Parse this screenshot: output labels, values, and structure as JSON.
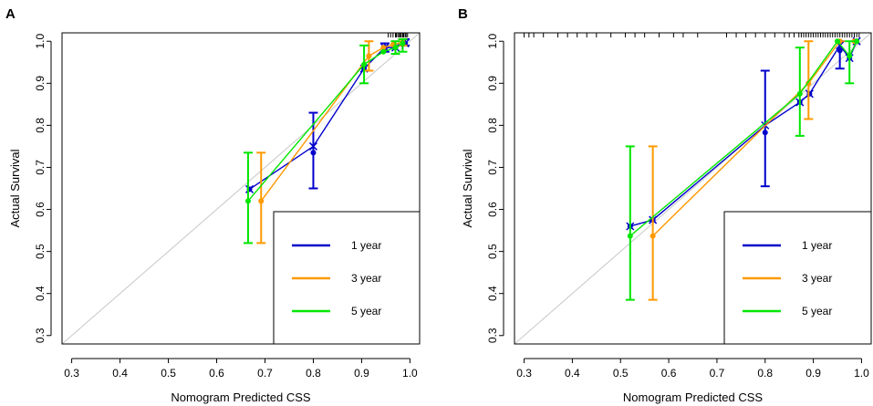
{
  "chart_data": [
    {
      "type": "line",
      "panel_label": "A",
      "xlabel": "Nomogram  Predicted CSS",
      "ylabel": "Actual Survival",
      "xlim": [
        0.28,
        1.02
      ],
      "ylim": [
        0.28,
        1.02
      ],
      "xticks": [
        "0.3",
        "0.4",
        "0.5",
        "0.6",
        "0.7",
        "0.8",
        "0.9",
        "1.0"
      ],
      "yticks": [
        "0.3",
        "0.4",
        "0.5",
        "0.6",
        "0.7",
        "0.8",
        "0.9",
        "1.0"
      ],
      "reference_line": [
        [
          0.28,
          0.28
        ],
        [
          1.02,
          1.02
        ]
      ],
      "legend": {
        "position": "bottom-right",
        "entries": [
          "1 year",
          "3 year",
          "5 year"
        ]
      },
      "series": [
        {
          "name": "1 year",
          "color": "#0000cc",
          "x": [
            0.668,
            0.8,
            0.905,
            0.948,
            0.97,
            0.99
          ],
          "y": [
            0.648,
            0.75,
            0.935,
            0.985,
            0.985,
            0.995
          ],
          "observed": [
            0.648,
            0.735,
            0.935,
            0.985,
            0.985,
            0.995
          ],
          "ci_low": [
            null,
            0.65,
            null,
            0.975,
            null,
            0.99
          ],
          "ci_high": [
            null,
            0.83,
            null,
            0.995,
            null,
            1.005
          ]
        },
        {
          "name": "3 year",
          "color": "#ff9900",
          "x": [
            0.692,
            0.915,
            0.945,
            0.965,
            0.985
          ],
          "y": [
            0.62,
            0.965,
            0.985,
            0.992,
            0.998
          ],
          "ci_low": [
            0.52,
            0.93,
            null,
            null,
            0.99
          ],
          "ci_high": [
            0.735,
            1.0,
            null,
            null,
            1.005
          ]
        },
        {
          "name": "5 year",
          "color": "#00e600",
          "x": [
            0.665,
            0.905,
            0.945,
            0.97,
            0.985
          ],
          "y": [
            0.62,
            0.945,
            0.975,
            0.985,
            0.995
          ],
          "ci_low": [
            0.52,
            0.9,
            null,
            0.97,
            0.975
          ],
          "ci_high": [
            0.735,
            0.99,
            null,
            1.0,
            1.005
          ]
        }
      ],
      "rug": [
        0.955,
        0.96,
        0.965,
        0.97,
        0.972,
        0.975,
        0.978,
        0.98,
        0.982,
        0.985,
        0.987,
        0.99,
        0.992,
        0.995
      ]
    },
    {
      "type": "line",
      "panel_label": "B",
      "xlabel": "Nomogram  Predicted CSS",
      "ylabel": "Actual Survival",
      "xlim": [
        0.28,
        1.02
      ],
      "ylim": [
        0.28,
        1.02
      ],
      "xticks": [
        "0.3",
        "0.4",
        "0.5",
        "0.6",
        "0.7",
        "0.8",
        "0.9",
        "1.0"
      ],
      "yticks": [
        "0.3",
        "0.4",
        "0.5",
        "0.6",
        "0.7",
        "0.8",
        "0.9",
        "1.0"
      ],
      "reference_line": [
        [
          0.28,
          0.28
        ],
        [
          1.02,
          1.02
        ]
      ],
      "legend": {
        "position": "bottom-right",
        "entries": [
          "1 year",
          "3 year",
          "5 year"
        ]
      },
      "series": [
        {
          "name": "1 year",
          "color": "#0000cc",
          "x": [
            0.52,
            0.567,
            0.8,
            0.872,
            0.892,
            0.955,
            0.975,
            0.99
          ],
          "y": [
            0.56,
            0.575,
            0.8,
            0.855,
            0.875,
            0.99,
            0.96,
            1.0
          ],
          "observed": [
            0.56,
            0.575,
            0.783,
            0.855,
            0.875,
            0.978,
            0.96,
            1.0
          ],
          "ci_low": [
            null,
            null,
            0.655,
            null,
            null,
            0.935,
            null,
            null
          ],
          "ci_high": [
            null,
            null,
            0.93,
            null,
            null,
            1.0,
            null,
            null
          ]
        },
        {
          "name": "3 year",
          "color": "#ff9900",
          "x": [
            0.567,
            0.89,
            0.955,
            0.985
          ],
          "y": [
            0.537,
            0.9,
            1.0,
            1.0
          ],
          "ci_low": [
            0.385,
            0.815,
            null,
            null
          ],
          "ci_high": [
            0.75,
            1.0,
            null,
            null
          ]
        },
        {
          "name": "5 year",
          "color": "#00e600",
          "x": [
            0.52,
            0.872,
            0.95,
            0.975,
            0.99
          ],
          "y": [
            0.537,
            0.875,
            1.0,
            0.965,
            1.0
          ],
          "ci_low": [
            0.385,
            0.775,
            null,
            0.9,
            null
          ],
          "ci_high": [
            0.75,
            0.985,
            null,
            1.0,
            null
          ]
        }
      ],
      "rug": [
        0.3,
        0.31,
        0.32,
        0.34,
        0.37,
        0.39,
        0.41,
        0.43,
        0.45,
        0.48,
        0.51,
        0.53,
        0.55,
        0.58,
        0.61,
        0.63,
        0.66,
        0.72,
        0.74,
        0.76,
        0.78,
        0.8,
        0.82,
        0.84,
        0.85,
        0.86,
        0.87,
        0.875,
        0.88,
        0.885,
        0.89,
        0.895,
        0.9,
        0.905,
        0.91,
        0.915,
        0.92,
        0.925,
        0.93,
        0.935,
        0.94,
        0.945,
        0.95,
        0.955,
        0.96,
        0.965,
        0.97,
        0.975,
        0.98,
        0.985,
        0.99,
        0.995
      ]
    }
  ]
}
